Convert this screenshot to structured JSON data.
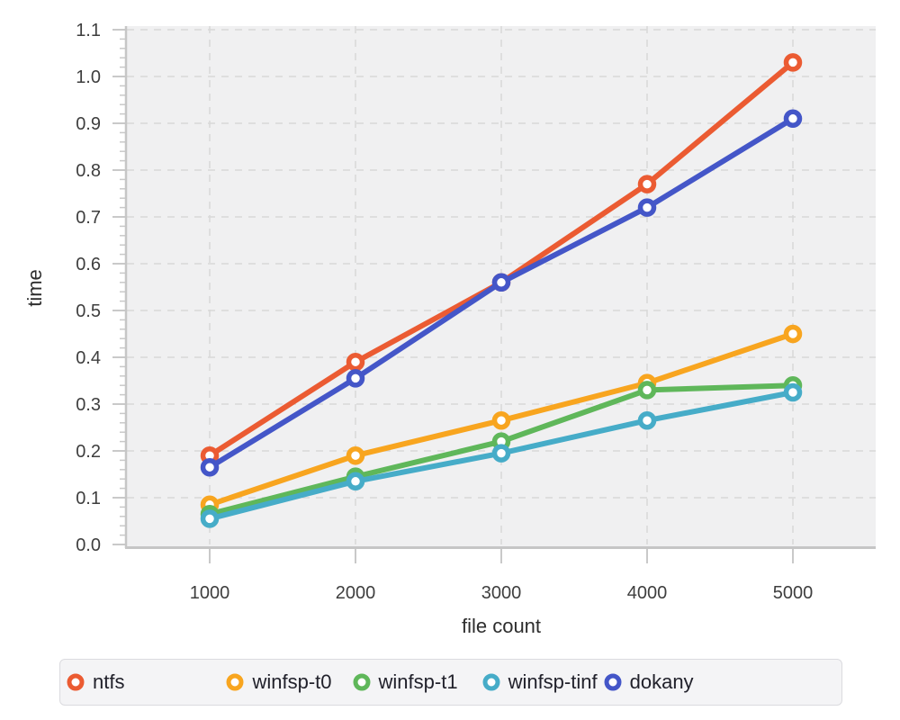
{
  "chart_data": {
    "type": "line",
    "title": "",
    "xlabel": "file count",
    "ylabel": "time",
    "x": [
      1000,
      2000,
      3000,
      4000,
      5000
    ],
    "x_tick_labels": [
      "1000",
      "2000",
      "3000",
      "4000",
      "5000"
    ],
    "y_tick_labels": [
      "0.0",
      "0.1",
      "0.2",
      "0.3",
      "0.4",
      "0.5",
      "0.6",
      "0.7",
      "0.8",
      "0.9",
      "1.0",
      "1.1"
    ],
    "y_major_step": 0.1,
    "y_minor_step": 0.02,
    "xlim": [
      432,
      5568
    ],
    "ylim": [
      0,
      1.1
    ],
    "grid": true,
    "legend_position": "bottom",
    "series": [
      {
        "name": "ntfs",
        "color": "#EB5B32",
        "values": [
          0.19,
          0.39,
          0.56,
          0.77,
          1.03
        ]
      },
      {
        "name": "winfsp-t0",
        "color": "#F8A51F",
        "values": [
          0.085,
          0.19,
          0.265,
          0.345,
          0.45
        ]
      },
      {
        "name": "winfsp-t1",
        "color": "#5FB75A",
        "values": [
          0.065,
          0.145,
          0.22,
          0.33,
          0.34
        ]
      },
      {
        "name": "winfsp-tinf",
        "color": "#46ACC8",
        "values": [
          0.055,
          0.135,
          0.195,
          0.265,
          0.325
        ]
      },
      {
        "name": "dokany",
        "color": "#4456C8",
        "values": [
          0.165,
          0.355,
          0.56,
          0.72,
          0.91
        ]
      }
    ]
  },
  "style_colors": {
    "plot_bg": "#f0f0f1",
    "grid": "#d8d8d8",
    "axis_line": "#c6c6c6",
    "tick": "#c9c9c9",
    "tick_label": "#3e3e3e",
    "axis_title": "#2d2d2d",
    "marker_fill": "#ffffff"
  }
}
